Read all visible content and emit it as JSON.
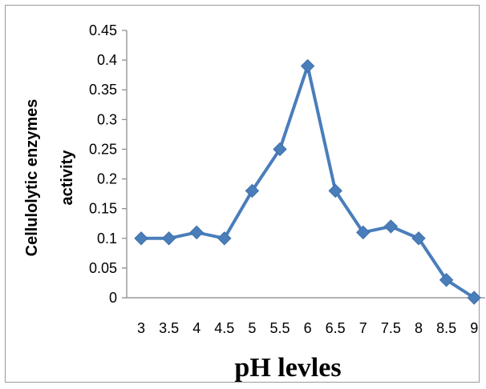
{
  "chart_data": {
    "type": "line",
    "title": "",
    "xlabel": "pH levles",
    "ylabel_lines": [
      "Cellulolytic enzymes",
      "activity"
    ],
    "categories": [
      "3",
      "3.5",
      "4",
      "4.5",
      "5",
      "5.5",
      "6",
      "6.5",
      "7",
      "7.5",
      "8",
      "8.5",
      "9"
    ],
    "series": [
      {
        "values": [
          0.1,
          0.1,
          0.11,
          0.1,
          0.18,
          0.25,
          0.39,
          0.18,
          0.11,
          0.12,
          0.1,
          0.03,
          0.0
        ]
      }
    ],
    "ylim": [
      0,
      0.45
    ],
    "yticks": [
      "0",
      "0.05",
      "0.1",
      "0.15",
      "0.2",
      "0.25",
      "0.3",
      "0.35",
      "0.4",
      "0.45"
    ],
    "grid": false,
    "legend": "none",
    "colors": {
      "line": "#4a7ebb",
      "marker": "#4a7ebb",
      "axis": "#868686"
    }
  }
}
